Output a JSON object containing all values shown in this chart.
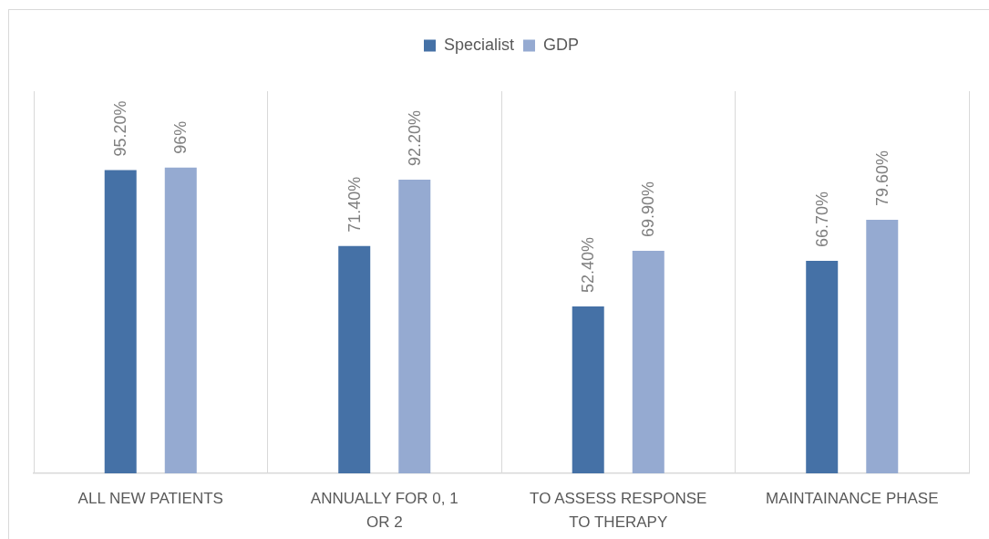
{
  "chart_data": {
    "type": "bar",
    "categories": [
      "ALL NEW PATIENTS",
      "ANNUALLY FOR 0, 1 OR 2",
      "TO ASSESS RESPONSE TO THERAPY",
      "MAINTAINANCE PHASE"
    ],
    "series": [
      {
        "name": "Specialist",
        "color": "#4571a6",
        "values": [
          95.2,
          71.4,
          52.4,
          66.7
        ],
        "value_labels": [
          "95.20%",
          "71.40%",
          "52.40%",
          "66.70%"
        ]
      },
      {
        "name": "GDP",
        "color": "#95aad1",
        "values": [
          96,
          92.2,
          69.9,
          79.6
        ],
        "value_labels": [
          "96%",
          "92.20%",
          "69.90%",
          "79.60%"
        ]
      }
    ],
    "ylim": [
      0,
      120
    ],
    "tick_labels": "x",
    "grid": "x",
    "legend": "top"
  }
}
